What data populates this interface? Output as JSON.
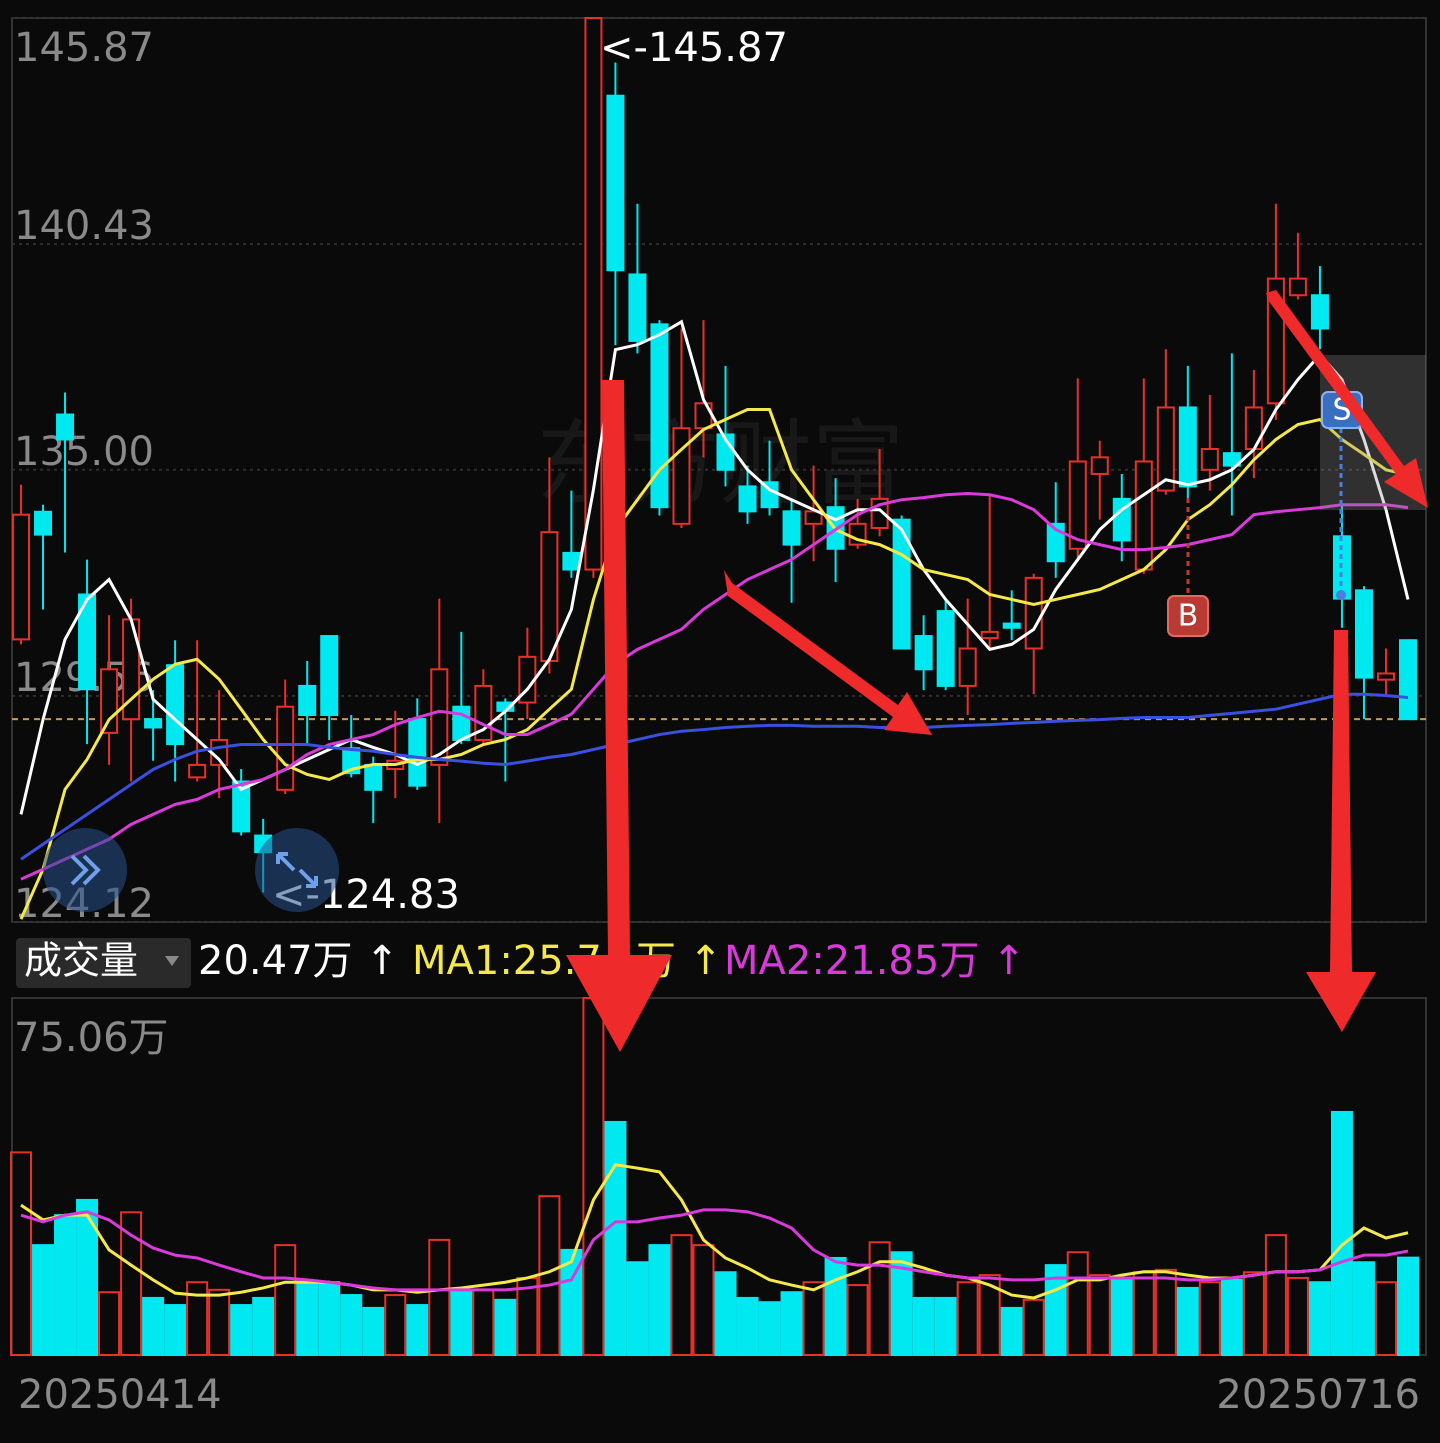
{
  "chart_data": [
    {
      "type": "candlestick",
      "watermark": "东方财富",
      "annotations": [
        "<-145.87",
        "<-124.83"
      ],
      "markers": [
        "B",
        "S"
      ],
      "categories": [
        "20250414",
        null,
        null,
        null,
        null,
        null,
        null,
        null,
        null,
        null,
        null,
        null,
        null,
        null,
        null,
        null,
        null,
        null,
        null,
        null,
        null,
        null,
        null,
        null,
        null,
        null,
        null,
        null,
        null,
        null,
        null,
        null,
        null,
        null,
        null,
        null,
        null,
        null,
        null,
        null,
        null,
        null,
        null,
        null,
        null,
        null,
        null,
        null,
        null,
        null,
        null,
        null,
        null,
        null,
        null,
        null,
        null,
        null,
        null,
        null,
        null,
        null,
        null,
        "20250716"
      ],
      "open": [
        130.92,
        133.99,
        136.33,
        132.0,
        128.67,
        129.0,
        129.0,
        130.3,
        127.6,
        127.9,
        127.5,
        126.2,
        127.3,
        129.8,
        131.0,
        128.3,
        127.9,
        127.8,
        129.0,
        127.9,
        129.3,
        128.5,
        129.4,
        129.4,
        130.4,
        133.0,
        132.6,
        144.0,
        139.7,
        138.5,
        133.7,
        136.0,
        135.85,
        134.6,
        134.7,
        134.0,
        133.7,
        134.1,
        133.2,
        133.6,
        133.8,
        131.0,
        131.6,
        129.8,
        130.95,
        131.3,
        130.7,
        133.7,
        133.1,
        134.9,
        134.3,
        132.6,
        134.5,
        136.5,
        135.0,
        135.4,
        135.5,
        136.6,
        139.2,
        139.2,
        133.4,
        132.1,
        129.95,
        130.9
      ],
      "high": [
        134.64,
        134.16,
        136.86,
        132.84,
        131.5,
        131.9,
        129.7,
        130.9,
        130.9,
        129.7,
        127.8,
        126.6,
        129.95,
        130.4,
        131.0,
        129.1,
        128.1,
        129.2,
        129.5,
        131.9,
        131.1,
        130.2,
        129.5,
        131.2,
        135.3,
        134.5,
        145.87,
        144.8,
        141.4,
        138.6,
        138.4,
        138.6,
        137.5,
        135.1,
        135.7,
        134.3,
        135.1,
        134.8,
        134.3,
        135.5,
        133.9,
        131.5,
        131.9,
        131.9,
        134.4,
        132.1,
        132.5,
        134.7,
        137.2,
        135.7,
        134.9,
        137.2,
        137.9,
        137.5,
        136.8,
        137.8,
        137.4,
        141.4,
        140.7,
        139.9,
        134.2,
        132.2,
        130.7,
        130.9
      ],
      "low": [
        130.8,
        131.64,
        133.01,
        128.4,
        127.9,
        127.5,
        128.0,
        127.5,
        127.5,
        127.1,
        126.2,
        124.83,
        127.2,
        128.4,
        128.5,
        127.6,
        126.5,
        127.1,
        127.3,
        126.5,
        128.4,
        128.4,
        127.5,
        129.0,
        130.1,
        132.4,
        132.4,
        138.0,
        137.8,
        133.9,
        133.6,
        135.3,
        134.6,
        133.7,
        133.9,
        131.8,
        132.8,
        132.3,
        133.1,
        133.4,
        130.7,
        129.7,
        129.7,
        129.1,
        130.7,
        130.9,
        129.6,
        132.4,
        132.8,
        133.8,
        132.8,
        132.5,
        134.4,
        134.3,
        134.5,
        133.9,
        134.8,
        136.2,
        139.1,
        137.9,
        131.2,
        129.0,
        129.6,
        129.0
      ],
      "close": [
        133.92,
        133.44,
        135.73,
        129.72,
        130.2,
        131.4,
        128.8,
        128.4,
        127.9,
        128.5,
        126.3,
        125.8,
        129.3,
        129.1,
        129.1,
        127.7,
        127.3,
        128.0,
        127.4,
        130.2,
        128.5,
        129.8,
        129.2,
        130.5,
        133.5,
        132.6,
        145.87,
        139.8,
        138.1,
        134.1,
        136.0,
        136.6,
        135.0,
        134.0,
        134.1,
        133.2,
        134.0,
        133.1,
        133.7,
        134.3,
        130.7,
        130.2,
        129.8,
        130.7,
        131.1,
        131.2,
        132.4,
        132.8,
        135.2,
        135.3,
        133.3,
        135.2,
        136.5,
        134.6,
        135.5,
        135.1,
        136.5,
        139.6,
        139.6,
        138.4,
        131.9,
        130.0,
        130.1,
        129.0
      ],
      "up_color": "#e8302a",
      "down_color": "#00e8f0",
      "lines": [
        {
          "color": "#ffffff",
          "values": [
            126.71,
            128.99,
            130.92,
            131.88,
            132.36,
            131.4,
            129.48,
            128.99,
            128.51,
            128.03,
            127.31,
            127.55,
            127.79,
            128.03,
            128.27,
            128.51,
            128.32,
            128.15,
            127.91,
            128.15,
            128.51,
            128.75,
            129.19,
            129.72,
            130.44,
            131.64,
            134.52,
            137.89,
            138.01,
            138.25,
            138.56,
            136.69,
            135.73,
            135.0,
            134.52,
            134.28,
            134.04,
            133.8,
            134.04,
            134.04,
            133.56,
            132.6,
            131.88,
            131.28,
            130.68,
            130.8,
            131.16,
            132.12,
            132.84,
            133.56,
            134.04,
            134.4,
            134.76,
            134.64,
            134.76,
            135.0,
            135.49,
            136.45,
            137.17,
            137.77,
            137.17,
            135.73,
            134.04,
            131.88
          ]
        },
        {
          "color": "#f5e94a",
          "values": [
            124.19,
            125.39,
            127.31,
            128.03,
            128.99,
            129.48,
            129.96,
            130.32,
            130.44,
            129.96,
            129.24,
            128.51,
            127.91,
            127.67,
            127.55,
            127.79,
            127.91,
            127.91,
            128.03,
            128.03,
            128.15,
            128.39,
            128.51,
            128.75,
            129.24,
            129.72,
            131.88,
            133.56,
            134.28,
            135.0,
            135.49,
            135.97,
            136.21,
            136.45,
            136.45,
            135.0,
            134.28,
            133.56,
            133.32,
            133.2,
            132.96,
            132.6,
            132.48,
            132.36,
            132.0,
            131.88,
            131.76,
            131.88,
            132.0,
            132.12,
            132.36,
            132.6,
            133.08,
            133.8,
            134.16,
            134.64,
            135.24,
            135.73,
            136.09,
            136.21,
            135.73,
            135.37,
            135.0,
            134.88
          ]
        },
        {
          "color": "#d93ad9",
          "values": [
            125.15,
            125.39,
            125.63,
            125.87,
            126.11,
            126.47,
            126.71,
            126.95,
            127.07,
            127.31,
            127.43,
            127.55,
            127.79,
            128.15,
            128.39,
            128.51,
            128.63,
            128.87,
            129.04,
            129.19,
            129.12,
            128.87,
            128.63,
            128.63,
            128.87,
            129.12,
            129.72,
            130.32,
            130.68,
            130.92,
            131.16,
            131.64,
            132.0,
            132.36,
            132.6,
            132.84,
            133.2,
            133.56,
            133.92,
            134.16,
            134.28,
            134.33,
            134.4,
            134.43,
            134.4,
            134.28,
            134.04,
            133.56,
            133.32,
            133.2,
            133.08,
            133.08,
            133.13,
            133.2,
            133.32,
            133.44,
            133.92,
            133.99,
            134.04,
            134.09,
            134.16,
            134.16,
            134.16,
            134.09
          ]
        },
        {
          "color": "#3a50e0",
          "values": [
            125.63,
            125.99,
            126.35,
            126.71,
            127.07,
            127.43,
            127.79,
            128.03,
            128.23,
            128.32,
            128.39,
            128.39,
            128.39,
            128.39,
            128.32,
            128.27,
            128.23,
            128.15,
            128.08,
            128.03,
            127.99,
            127.94,
            127.91,
            127.99,
            128.08,
            128.15,
            128.27,
            128.39,
            128.51,
            128.63,
            128.71,
            128.75,
            128.8,
            128.83,
            128.85,
            128.85,
            128.83,
            128.83,
            128.83,
            128.8,
            128.8,
            128.8,
            128.83,
            128.85,
            128.87,
            128.9,
            128.92,
            128.95,
            128.97,
            128.99,
            129.02,
            129.04,
            129.04,
            129.04,
            129.09,
            129.14,
            129.19,
            129.24,
            129.36,
            129.48,
            129.6,
            129.6,
            129.57,
            129.52
          ]
        }
      ],
      "ylim": [
        124.12,
        145.87
      ],
      "yticks": [
        124.12,
        129.56,
        {
          "value": 135.0,
          "label": "135.00"
        },
        140.43,
        145.87
      ],
      "grid": true
    },
    {
      "type": "bar",
      "title": "成交量",
      "legend_texts": [
        "20.47万 ↑",
        "MA1:25.7",
        "万 ↑",
        "MA2:21.85万 ↑"
      ],
      "values": [
        42.6,
        23.1,
        29.4,
        32.6,
        13.2,
        30.0,
        12.0,
        10.5,
        15.3,
        13.7,
        10.5,
        12.0,
        23.1,
        15.3,
        15.3,
        12.6,
        9.9,
        12.6,
        10.5,
        24.2,
        13.7,
        13.7,
        11.6,
        16.2,
        33.4,
        22.1,
        75.06,
        49.0,
        19.5,
        23.1,
        25.2,
        23.1,
        17.4,
        12.0,
        11.1,
        13.2,
        15.3,
        20.4,
        14.7,
        23.7,
        21.6,
        12.0,
        12.0,
        15.3,
        16.8,
        9.9,
        11.6,
        18.9,
        21.6,
        16.8,
        16.2,
        17.4,
        17.9,
        14.1,
        15.3,
        15.8,
        17.4,
        25.2,
        16.2,
        15.3,
        51.1,
        19.5,
        15.3,
        20.47
      ],
      "series": [
        {
          "color": "#f5e94a",
          "values": [
            31.5,
            28.4,
            29.4,
            29.4,
            22.1,
            18.9,
            15.8,
            13.0,
            12.6,
            12.6,
            13.2,
            14.1,
            15.3,
            15.3,
            15.3,
            14.7,
            13.7,
            13.7,
            13.2,
            13.7,
            14.1,
            14.7,
            15.3,
            16.2,
            17.5,
            19.6,
            32.6,
            40.0,
            39.3,
            38.5,
            32.6,
            24.2,
            20.4,
            18.3,
            15.8,
            14.7,
            13.7,
            15.8,
            17.5,
            19.6,
            19.6,
            18.3,
            16.8,
            16.2,
            14.7,
            12.6,
            12.0,
            13.7,
            15.8,
            15.8,
            16.8,
            17.5,
            17.5,
            16.8,
            16.2,
            16.2,
            16.8,
            17.5,
            17.5,
            17.9,
            23.1,
            26.7,
            24.6,
            25.7
          ]
        },
        {
          "color": "#d93ad9",
          "values": [
            29.4,
            28.0,
            29.4,
            30.1,
            28.4,
            25.2,
            22.5,
            21.0,
            20.4,
            18.9,
            17.5,
            16.2,
            16.2,
            15.8,
            15.3,
            14.7,
            14.1,
            13.7,
            13.7,
            13.7,
            13.7,
            13.7,
            13.7,
            14.1,
            14.7,
            15.8,
            24.2,
            28.0,
            28.0,
            28.8,
            29.4,
            30.5,
            30.5,
            30.1,
            28.8,
            26.7,
            22.1,
            19.6,
            18.9,
            18.9,
            18.3,
            17.5,
            16.8,
            16.2,
            16.2,
            15.8,
            15.8,
            16.2,
            16.2,
            16.2,
            16.2,
            16.2,
            16.2,
            15.8,
            15.8,
            16.2,
            16.8,
            17.5,
            17.5,
            17.9,
            19.6,
            21.0,
            21.0,
            21.85
          ]
        }
      ],
      "ylim": [
        0,
        75.06
      ],
      "yticks": [
        {
          "value": 75.06,
          "label": "75.06万"
        }
      ]
    }
  ]
}
